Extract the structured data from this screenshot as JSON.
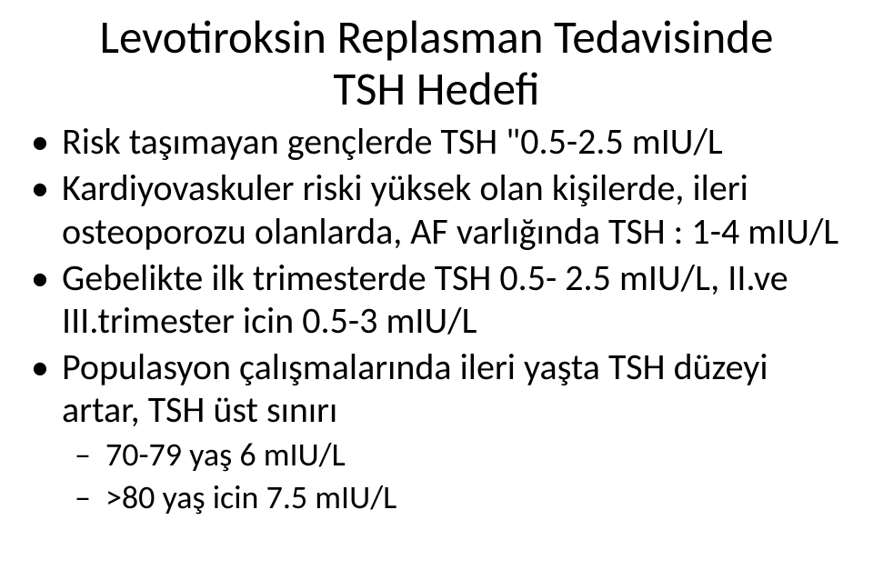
{
  "title_line1": "Levotiroksin Replasman Tedavisinde",
  "title_line2": "TSH Hedefi",
  "bullets": [
    {
      "text": "Risk taşımayan gençlerde TSH \"0.5-2.5 mIU/L"
    },
    {
      "text": "Kardiyovaskuler riski yüksek olan kişilerde, ileri osteoporozu olanlarda, AF varlığında TSH : 1-4 mIU/L"
    },
    {
      "text": "Gebelikte ilk trimesterde TSH 0.5- 2.5 mIU/L, II.ve III.trimester icin 0.5-3 mIU/L"
    },
    {
      "text": "Populasyon çalışmalarında ileri yaşta TSH düzeyi artar, TSH üst sınırı",
      "sub": [
        "70-79 yaş 6 mIU/L",
        ">80 yaş icin 7.5 mIU/L"
      ]
    }
  ]
}
